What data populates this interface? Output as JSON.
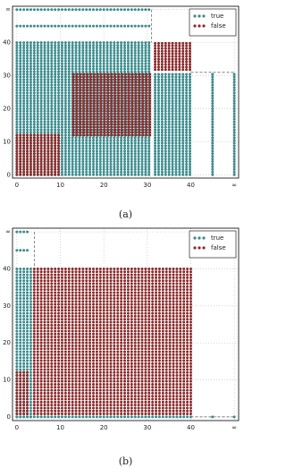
{
  "chart_data": [
    {
      "type": "scatter",
      "caption": "(a)",
      "xlim": [
        -1,
        51
      ],
      "ylim": [
        -1,
        51
      ],
      "xticks": [
        0,
        10,
        20,
        30,
        40,
        {
          "value": 50,
          "label": "∞"
        }
      ],
      "yticks": [
        0,
        10,
        20,
        30,
        40,
        {
          "value": 50,
          "label": "∞"
        }
      ],
      "grid": true,
      "legend": "upper right",
      "series": [
        {
          "name": "true",
          "color": "#3b8b8d",
          "regions": [
            {
              "x": [
                0,
                31
              ],
              "y": [
                0,
                40
              ]
            },
            {
              "x": [
                0,
                31
              ],
              "y": [
                45,
                45
              ]
            },
            {
              "x": [
                0,
                31
              ],
              "y": [
                50,
                50
              ]
            },
            {
              "x": [
                31.8,
                40
              ],
              "y": [
                0,
                31
              ]
            },
            {
              "x": [
                45,
                45
              ],
              "y": [
                0,
                31
              ]
            },
            {
              "x": [
                50,
                50
              ],
              "y": [
                0,
                31
              ]
            }
          ]
        },
        {
          "name": "false",
          "color": "#8b2b2b",
          "regions": [
            {
              "x": [
                0,
                10
              ],
              "y": [
                0,
                12
              ]
            },
            {
              "x": [
                13,
                31
              ],
              "y": [
                12,
                31
              ]
            },
            {
              "x": [
                31.8,
                40
              ],
              "y": [
                31.8,
                40
              ]
            }
          ]
        }
      ],
      "dashed_lines": [
        {
          "x": [
            31,
            31
          ],
          "y": [
            50,
            40
          ]
        },
        {
          "x": [
            40,
            50
          ],
          "y": [
            31,
            31
          ]
        }
      ]
    },
    {
      "type": "scatter",
      "caption": "(b)",
      "xlim": [
        -1,
        51
      ],
      "ylim": [
        -1,
        51
      ],
      "xticks": [
        0,
        10,
        20,
        30,
        40,
        {
          "value": 50,
          "label": "∞"
        }
      ],
      "yticks": [
        0,
        10,
        20,
        30,
        40,
        {
          "value": 50,
          "label": "∞"
        }
      ],
      "grid": true,
      "legend": "upper right",
      "series": [
        {
          "name": "true",
          "color": "#3b8b8d",
          "regions": [
            {
              "x": [
                0,
                3.2
              ],
              "y": [
                0,
                40
              ]
            },
            {
              "x": [
                0,
                3
              ],
              "y": [
                45,
                45
              ]
            },
            {
              "x": [
                0,
                3
              ],
              "y": [
                50,
                50
              ]
            },
            {
              "x": [
                0,
                40
              ],
              "y": [
                0,
                0
              ]
            },
            {
              "x": [
                45,
                45
              ],
              "y": [
                0,
                0
              ]
            },
            {
              "x": [
                50,
                50
              ],
              "y": [
                0,
                0
              ]
            }
          ]
        },
        {
          "name": "false",
          "color": "#8b2b2b",
          "regions": [
            {
              "x": [
                4,
                40
              ],
              "y": [
                0.8,
                40
              ]
            },
            {
              "x": [
                0,
                2.4
              ],
              "y": [
                0.8,
                12
              ]
            }
          ]
        }
      ],
      "dashed_lines": [
        {
          "x": [
            4,
            4
          ],
          "y": [
            50,
            40
          ]
        },
        {
          "x": [
            40,
            50
          ],
          "y": [
            0,
            0
          ]
        }
      ]
    }
  ]
}
